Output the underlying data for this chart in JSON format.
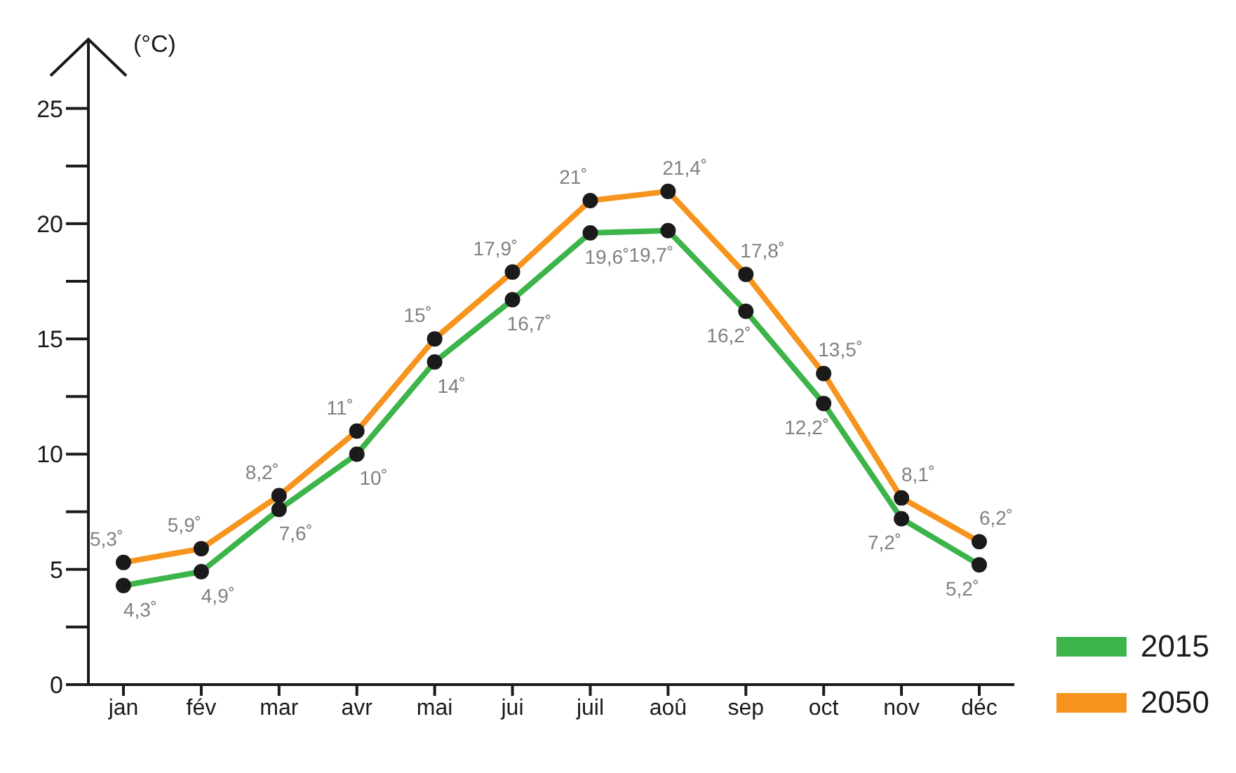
{
  "chart_data": {
    "type": "line",
    "ylabel": "(°C)",
    "categories": [
      "jan",
      "fév",
      "mar",
      "avr",
      "mai",
      "jui",
      "juil",
      "aoû",
      "sep",
      "oct",
      "nov",
      "déc"
    ],
    "series": [
      {
        "name": "2015",
        "color": "#3cb44a",
        "values": [
          4.3,
          4.9,
          7.6,
          10,
          14,
          16.7,
          19.6,
          19.7,
          16.2,
          12.2,
          7.2,
          5.2
        ],
        "value_labels": [
          "4,3˚",
          "4,9˚",
          "7,6˚",
          "10˚",
          "14˚",
          "16,7˚",
          "19,6˚",
          "19,7˚",
          "16,2˚",
          "12,2˚",
          "7,2˚",
          "5,2˚"
        ]
      },
      {
        "name": "2050",
        "color": "#f7941d",
        "values": [
          5.3,
          5.9,
          8.2,
          11,
          15,
          17.9,
          21,
          21.4,
          17.8,
          13.5,
          8.1,
          6.2
        ],
        "value_labels": [
          "5,3˚",
          "5,9˚",
          "8,2˚",
          "11˚",
          "15˚",
          "17,9˚",
          "21˚",
          "21,4˚",
          "17,8˚",
          "13,5˚",
          "8,1˚",
          "6,2˚"
        ]
      }
    ],
    "ylim": [
      0,
      28
    ],
    "yticks": [
      0,
      {
        "value": 2.5,
        "label": null
      },
      5,
      {
        "value": 7.5,
        "label": null
      },
      10,
      {
        "value": 12.5,
        "label": null
      },
      15,
      {
        "value": 17.5,
        "label": null
      },
      20,
      {
        "value": 22.5,
        "label": null
      },
      25
    ],
    "grid": false,
    "legend": "bottom right",
    "marker": "circle",
    "line_style": "solid"
  }
}
